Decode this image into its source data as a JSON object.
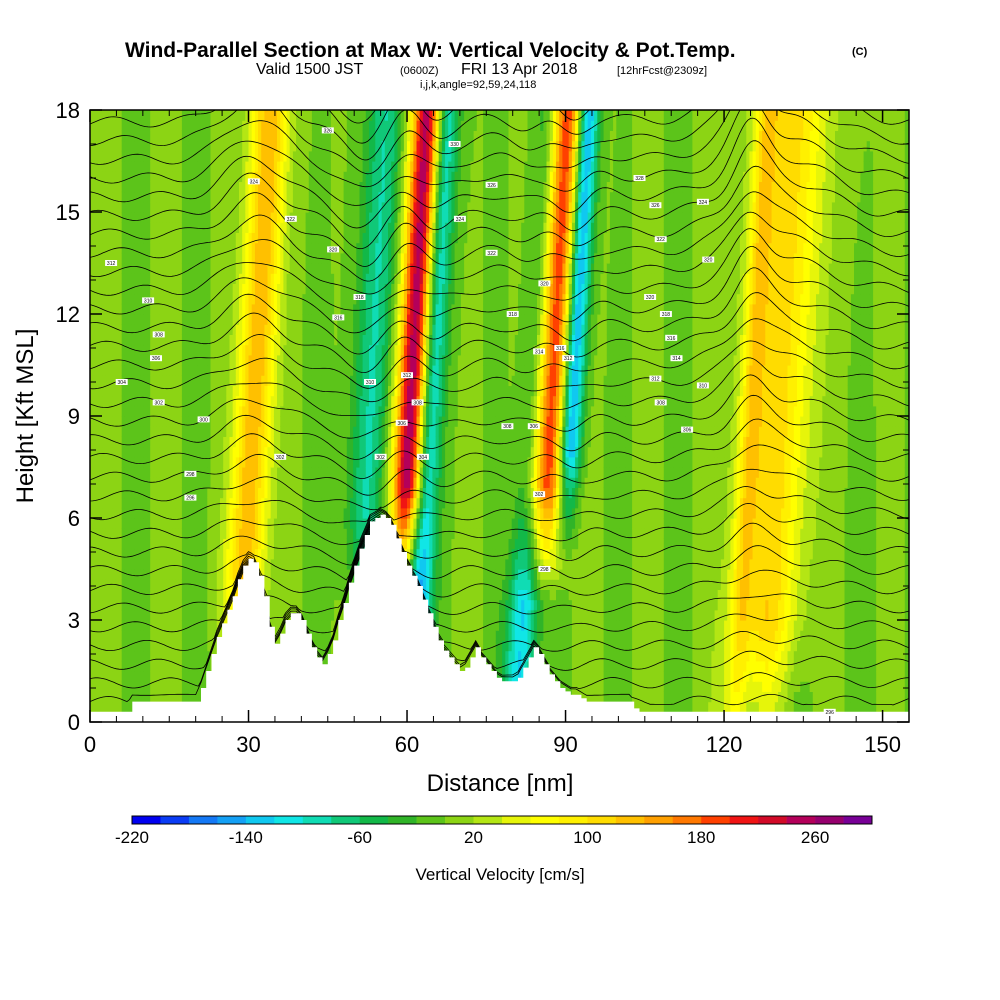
{
  "chart_data": {
    "type": "heatmap",
    "title": {
      "main": "Wind-Parallel Section at Max W: Vertical Velocity & Pot.Temp.",
      "copyright": "(C)",
      "valid_prefix": "Valid 1500 JST",
      "valid_utc": "(0600Z)",
      "valid_date": "FRI 13 Apr 2018",
      "forecast": "[12hrFcst@2309z]",
      "grid_info": "i,j,k,angle=92,59,24,118"
    },
    "xlabel": "Distance [nm]",
    "ylabel": "Height [Kft MSL]",
    "xlim": [
      0,
      155
    ],
    "ylim": [
      0,
      18
    ],
    "x_ticks": [
      "0",
      "30",
      "60",
      "90",
      "120",
      "150"
    ],
    "y_ticks": [
      "0",
      "3",
      "6",
      "9",
      "12",
      "15",
      "18"
    ],
    "colorbar": {
      "label": "Vertical Velocity [cm/s]",
      "tick_labels": [
        "-220",
        "-140",
        "-60",
        "20",
        "100",
        "180",
        "260"
      ],
      "range": [
        -220,
        300
      ],
      "step": 20,
      "colors": [
        "#0000f0",
        "#0a3cf5",
        "#1478f5",
        "#14a0f5",
        "#10c8f0",
        "#10e6e6",
        "#10dcb4",
        "#10c878",
        "#12b848",
        "#30b428",
        "#5cc41a",
        "#8cd414",
        "#b4e614",
        "#e6f50a",
        "#ffff00",
        "#fff000",
        "#ffdc00",
        "#ffc000",
        "#ffa000",
        "#ff7800",
        "#ff4000",
        "#f01414",
        "#d20a28",
        "#b4005a",
        "#96006e",
        "#780096"
      ]
    },
    "background_w": 0,
    "updraft_columns": [
      {
        "x": 31,
        "w": 140,
        "width": 2.5,
        "z0": 4.5
      },
      {
        "x": 61,
        "w": 280,
        "width": 2.2,
        "z0": 7
      },
      {
        "x": 87,
        "w": 240,
        "width": 3.0,
        "z0": 7
      },
      {
        "x": 130,
        "w": 110,
        "width": 4.5,
        "z0": 3
      },
      {
        "x": 125,
        "w": 70,
        "width": 1.5,
        "z0": 0
      }
    ],
    "downdraft_columns": [
      {
        "x": 53,
        "w": -80,
        "width": 2.5,
        "z0": 6
      },
      {
        "x": 64,
        "w": -160,
        "width": 1.8,
        "z0": 2
      },
      {
        "x": 91,
        "w": -220,
        "width": 1.6,
        "z0": 8
      },
      {
        "x": 84,
        "w": -130,
        "width": 2.0,
        "z0": 1
      }
    ],
    "terrain": {
      "x": [
        0,
        7,
        8,
        20,
        21,
        22,
        23,
        24,
        25,
        26,
        27,
        28,
        29,
        30,
        31,
        32,
        33,
        34,
        35,
        36,
        37,
        38,
        39,
        40,
        41,
        42,
        43,
        44,
        45,
        46,
        47,
        48,
        49,
        50,
        51,
        52,
        53,
        54,
        55,
        56,
        57,
        58,
        59,
        60,
        61,
        62,
        63,
        64,
        65,
        66,
        67,
        68,
        69,
        70,
        71,
        72,
        73,
        74,
        75,
        76,
        77,
        78,
        79,
        80,
        81,
        82,
        83,
        84,
        85,
        86,
        87,
        88,
        89,
        90,
        91,
        92,
        93,
        94,
        95,
        96,
        97,
        98,
        99,
        100,
        101,
        102,
        103,
        104,
        155
      ],
      "z": [
        0.3,
        0.3,
        0.6,
        0.6,
        1.0,
        1.5,
        2.0,
        2.5,
        2.9,
        3.3,
        3.7,
        4.2,
        4.6,
        4.8,
        4.7,
        4.3,
        3.7,
        2.8,
        2.3,
        2.6,
        3.0,
        3.2,
        3.2,
        3.0,
        2.6,
        2.2,
        1.9,
        1.7,
        2.0,
        2.4,
        3.0,
        3.5,
        4.1,
        4.6,
        5.1,
        5.5,
        5.9,
        6.0,
        6.1,
        6.0,
        5.8,
        5.4,
        5.0,
        4.6,
        4.3,
        4.0,
        3.6,
        3.2,
        2.8,
        2.4,
        2.1,
        1.9,
        1.7,
        1.5,
        1.6,
        1.9,
        2.2,
        1.9,
        1.7,
        1.5,
        1.3,
        1.2,
        1.2,
        1.2,
        1.3,
        1.6,
        1.9,
        2.2,
        2.0,
        1.7,
        1.4,
        1.2,
        1.0,
        0.9,
        0.8,
        0.8,
        0.7,
        0.6,
        0.6,
        0.6,
        0.6,
        0.6,
        0.6,
        0.6,
        0.6,
        0.6,
        0.4,
        0.3,
        0.3
      ]
    },
    "theta_contour_labels": [
      {
        "x": 4,
        "z": 13.5,
        "text": "312"
      },
      {
        "x": 11,
        "z": 12.4,
        "text": "310"
      },
      {
        "x": 13,
        "z": 11.4,
        "text": "308"
      },
      {
        "x": 12.5,
        "z": 10.7,
        "text": "306"
      },
      {
        "x": 6,
        "z": 10.0,
        "text": "304"
      },
      {
        "x": 13,
        "z": 9.4,
        "text": "302"
      },
      {
        "x": 21.5,
        "z": 8.9,
        "text": "300"
      },
      {
        "x": 19,
        "z": 7.3,
        "text": "298"
      },
      {
        "x": 19,
        "z": 6.6,
        "text": "296"
      },
      {
        "x": 31,
        "z": 15.9,
        "text": "324"
      },
      {
        "x": 38,
        "z": 14.8,
        "text": "322"
      },
      {
        "x": 45,
        "z": 17.4,
        "text": "326"
      },
      {
        "x": 46,
        "z": 13.9,
        "text": "320"
      },
      {
        "x": 47,
        "z": 11.9,
        "text": "316"
      },
      {
        "x": 51,
        "z": 12.5,
        "text": "318"
      },
      {
        "x": 36,
        "z": 7.8,
        "text": "302"
      },
      {
        "x": 53,
        "z": 10.0,
        "text": "310"
      },
      {
        "x": 55,
        "z": 7.8,
        "text": "302"
      },
      {
        "x": 59,
        "z": 8.8,
        "text": "306"
      },
      {
        "x": 60,
        "z": 10.2,
        "text": "312"
      },
      {
        "x": 62,
        "z": 9.4,
        "text": "308"
      },
      {
        "x": 63,
        "z": 7.8,
        "text": "304"
      },
      {
        "x": 69,
        "z": 17.0,
        "text": "330"
      },
      {
        "x": 70,
        "z": 14.8,
        "text": "324"
      },
      {
        "x": 76,
        "z": 15.8,
        "text": "326"
      },
      {
        "x": 76,
        "z": 13.8,
        "text": "322"
      },
      {
        "x": 80,
        "z": 12.0,
        "text": "318"
      },
      {
        "x": 79,
        "z": 8.7,
        "text": "308"
      },
      {
        "x": 84,
        "z": 8.7,
        "text": "306"
      },
      {
        "x": 86,
        "z": 12.9,
        "text": "320"
      },
      {
        "x": 85,
        "z": 10.9,
        "text": "314"
      },
      {
        "x": 89,
        "z": 11.0,
        "text": "316"
      },
      {
        "x": 90.5,
        "z": 10.7,
        "text": "312"
      },
      {
        "x": 85,
        "z": 6.7,
        "text": "302"
      },
      {
        "x": 86,
        "z": 4.5,
        "text": "298"
      },
      {
        "x": 104,
        "z": 16.0,
        "text": "328"
      },
      {
        "x": 107,
        "z": 15.2,
        "text": "326"
      },
      {
        "x": 108,
        "z": 14.2,
        "text": "322"
      },
      {
        "x": 106,
        "z": 12.5,
        "text": "320"
      },
      {
        "x": 109,
        "z": 12.0,
        "text": "318"
      },
      {
        "x": 110,
        "z": 11.3,
        "text": "316"
      },
      {
        "x": 111,
        "z": 10.7,
        "text": "314"
      },
      {
        "x": 107,
        "z": 10.1,
        "text": "312"
      },
      {
        "x": 108,
        "z": 9.4,
        "text": "308"
      },
      {
        "x": 116,
        "z": 15.3,
        "text": "324"
      },
      {
        "x": 117,
        "z": 13.6,
        "text": "320"
      },
      {
        "x": 116,
        "z": 9.9,
        "text": "310"
      },
      {
        "x": 113,
        "z": 8.6,
        "text": "306"
      },
      {
        "x": 140,
        "z": 0.3,
        "text": "296"
      }
    ]
  }
}
